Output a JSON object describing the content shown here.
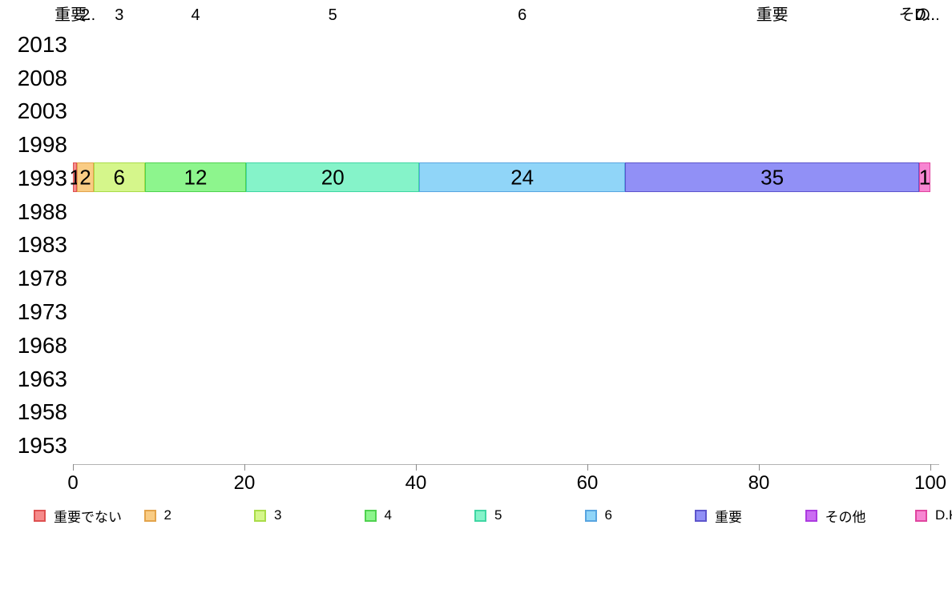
{
  "chart_data": {
    "type": "bar",
    "variant": "horizontal-stacked",
    "title": "",
    "xlabel": "",
    "ylabel": "",
    "xlim": [
      0,
      100
    ],
    "x_ticks": [
      "0",
      "20",
      "40",
      "60",
      "80",
      "100"
    ],
    "grid": false,
    "legend_position": "bottom",
    "categories": [
      "2013",
      "2008",
      "2003",
      "1998",
      "1993",
      "1988",
      "1983",
      "1978",
      "1973",
      "1968",
      "1963",
      "1958",
      "1953"
    ],
    "data_category": "1993",
    "series": [
      {
        "name": "重要でない",
        "top_label": "重要..",
        "value": 1,
        "value_label": "1",
        "width_pct": 0.5,
        "fill": "#F58A8A",
        "border": "#DE5151"
      },
      {
        "name": "2",
        "top_label": "2",
        "value": 2,
        "value_label": "2",
        "width_pct": 1.9,
        "fill": "#F9CC84",
        "border": "#E3A44C"
      },
      {
        "name": "3",
        "top_label": "3",
        "value": 6,
        "value_label": "6",
        "width_pct": 6.0,
        "fill": "#D5F68B",
        "border": "#A9DC49"
      },
      {
        "name": "4",
        "top_label": "4",
        "value": 12,
        "value_label": "12",
        "width_pct": 11.8,
        "fill": "#8DF58D",
        "border": "#4FD24F"
      },
      {
        "name": "5",
        "top_label": "5",
        "value": 20,
        "value_label": "20",
        "width_pct": 20.2,
        "fill": "#85F3C9",
        "border": "#3FD6A3"
      },
      {
        "name": "6",
        "top_label": "6",
        "value": 24,
        "value_label": "24",
        "width_pct": 24.0,
        "fill": "#90D5F8",
        "border": "#58A5E0"
      },
      {
        "name": "重要",
        "top_label": "重要",
        "value": 35,
        "value_label": "35",
        "width_pct": 34.3,
        "fill": "#9190F6",
        "border": "#5D55CC"
      },
      {
        "name": "その他",
        "top_label": "その..",
        "value": 0,
        "value_label": "",
        "width_pct": 0,
        "fill": "#CB6DF2",
        "border": "#AC3BE0"
      },
      {
        "name": "D.K.",
        "top_label": "D..",
        "value": 1,
        "value_label": "1",
        "width_pct": 1.3,
        "fill": "#F786D2",
        "border": "#E0459F"
      }
    ]
  }
}
